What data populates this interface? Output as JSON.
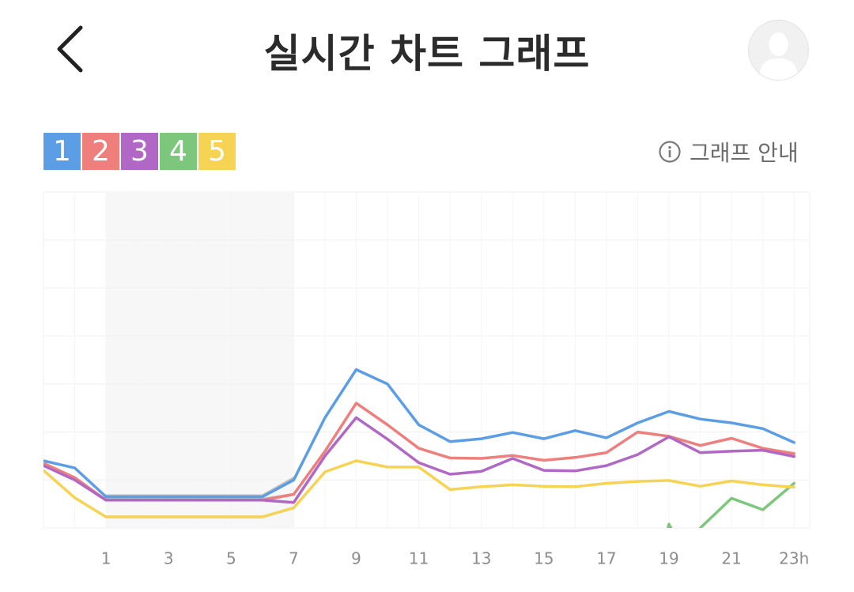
{
  "header": {
    "title": "실시간 차트 그래프",
    "back_icon": "chevron-left-icon",
    "avatar_icon": "user-avatar-icon"
  },
  "legend": [
    {
      "label": "1",
      "color": "#5b9ee6"
    },
    {
      "label": "2",
      "color": "#ee7f7c"
    },
    {
      "label": "3",
      "color": "#b067c6"
    },
    {
      "label": "4",
      "color": "#7cc77c"
    },
    {
      "label": "5",
      "color": "#f6d352"
    }
  ],
  "guide": {
    "label": "그래프 안내",
    "icon": "info-icon"
  },
  "chart_data": {
    "type": "line",
    "x": [
      0,
      1,
      2,
      3,
      4,
      5,
      6,
      7,
      8,
      9,
      10,
      11,
      12,
      13,
      14,
      15,
      16,
      17,
      18,
      19,
      20,
      21,
      22,
      23
    ],
    "x_tick_labels": [
      "1",
      "3",
      "5",
      "7",
      "9",
      "11",
      "13",
      "15",
      "17",
      "19",
      "21",
      "23h"
    ],
    "x_ticks": [
      1,
      3,
      5,
      7,
      9,
      11,
      13,
      15,
      17,
      19,
      21,
      23
    ],
    "xlim": [
      -1,
      23.5
    ],
    "ylim": [
      0,
      7
    ],
    "grid": true,
    "shaded_range": [
      1,
      7
    ],
    "series": [
      {
        "name": "1",
        "color": "#5b9ee6",
        "points": [
          [
            -1,
            1.4
          ],
          [
            0,
            1.25
          ],
          [
            1,
            0.65
          ],
          [
            6,
            0.65
          ],
          [
            7,
            1.0
          ],
          [
            8,
            2.3
          ],
          [
            9,
            3.3
          ],
          [
            10,
            3.0
          ],
          [
            11,
            2.15
          ],
          [
            12,
            1.8
          ],
          [
            13,
            1.86
          ],
          [
            14,
            1.99
          ],
          [
            15,
            1.86
          ],
          [
            16,
            2.03
          ],
          [
            17,
            1.88
          ],
          [
            18,
            2.19
          ],
          [
            19,
            2.43
          ],
          [
            20,
            2.27
          ],
          [
            21,
            2.19
          ],
          [
            22,
            2.07
          ],
          [
            23,
            1.78
          ]
        ]
      },
      {
        "name": "2",
        "color": "#ee7f7c",
        "points": [
          [
            -1,
            1.35
          ],
          [
            0,
            1.05
          ],
          [
            1,
            0.58
          ],
          [
            6,
            0.58
          ],
          [
            7,
            0.7
          ],
          [
            8,
            1.6
          ],
          [
            9,
            2.6
          ],
          [
            10,
            2.15
          ],
          [
            11,
            1.66
          ],
          [
            12,
            1.46
          ],
          [
            13,
            1.45
          ],
          [
            14,
            1.51
          ],
          [
            15,
            1.41
          ],
          [
            16,
            1.47
          ],
          [
            17,
            1.57
          ],
          [
            18,
            2.0
          ],
          [
            19,
            1.91
          ],
          [
            20,
            1.72
          ],
          [
            21,
            1.87
          ],
          [
            22,
            1.66
          ],
          [
            23,
            1.55
          ]
        ]
      },
      {
        "name": "3",
        "color": "#b067c6",
        "points": [
          [
            -1,
            1.3
          ],
          [
            0,
            1.0
          ],
          [
            1,
            0.58
          ],
          [
            6,
            0.58
          ],
          [
            7,
            0.53
          ],
          [
            8,
            1.5
          ],
          [
            9,
            2.3
          ],
          [
            10,
            1.85
          ],
          [
            11,
            1.36
          ],
          [
            12,
            1.12
          ],
          [
            13,
            1.18
          ],
          [
            14,
            1.45
          ],
          [
            15,
            1.2
          ],
          [
            16,
            1.19
          ],
          [
            17,
            1.3
          ],
          [
            18,
            1.53
          ],
          [
            19,
            1.9
          ],
          [
            20,
            1.57
          ],
          [
            21,
            1.6
          ],
          [
            22,
            1.62
          ],
          [
            23,
            1.49
          ]
        ]
      },
      {
        "name": "4",
        "color": "#7cc77c",
        "points": [
          [
            18.95,
            -0.05
          ],
          [
            19,
            0.08
          ],
          [
            19.1,
            -0.05
          ],
          [
            null,
            null
          ],
          [
            19.95,
            -0.05
          ],
          [
            20,
            0
          ],
          [
            21,
            0.62
          ],
          [
            22,
            0.38
          ],
          [
            23,
            0.93
          ]
        ]
      },
      {
        "name": "5",
        "color": "#f6d352",
        "points": [
          [
            -1,
            1.2
          ],
          [
            0,
            0.63
          ],
          [
            1,
            0.23
          ],
          [
            6,
            0.23
          ],
          [
            7,
            0.42
          ],
          [
            8,
            1.17
          ],
          [
            9,
            1.4
          ],
          [
            10,
            1.27
          ],
          [
            11,
            1.27
          ],
          [
            12,
            0.8
          ],
          [
            13,
            0.86
          ],
          [
            14,
            0.9
          ],
          [
            15,
            0.87
          ],
          [
            16,
            0.86
          ],
          [
            17,
            0.93
          ],
          [
            18,
            0.97
          ],
          [
            19,
            0.99
          ],
          [
            20,
            0.87
          ],
          [
            21,
            0.98
          ],
          [
            22,
            0.9
          ],
          [
            23,
            0.85
          ]
        ]
      },
      {
        "name": "",
        "color": "#bdbdbd",
        "points": [
          [
            1,
            0.67
          ],
          [
            6,
            0.67
          ],
          [
            7,
            1.04
          ]
        ]
      },
      {
        "name": "",
        "color": "#bdbdbd",
        "points": [
          [
            1,
            0.6
          ],
          [
            6,
            0.6
          ],
          [
            7,
            0.7
          ]
        ]
      },
      {
        "name": "",
        "color": "#bdbdbd",
        "points": [
          [
            1,
            0.23
          ],
          [
            6,
            0.23
          ],
          [
            7,
            0.42
          ]
        ]
      }
    ]
  }
}
